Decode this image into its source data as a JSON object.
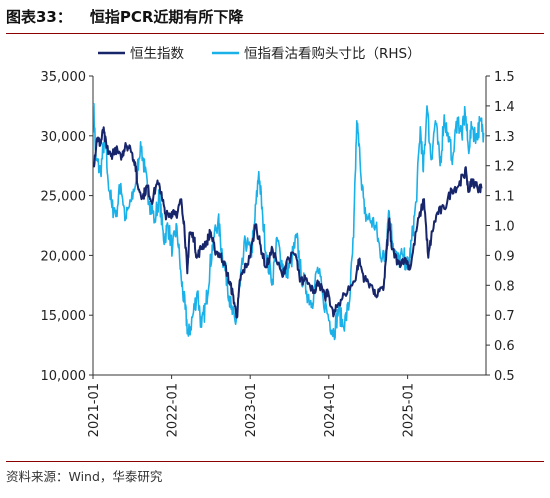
{
  "figure": {
    "label": "图表33：",
    "title": "恒指PCR近期有所下降",
    "source": "资料来源：Wind，华泰研究"
  },
  "colors": {
    "hsi": "#17256b",
    "pcr": "#1ab0e8",
    "rule": "#8b0000"
  },
  "chart_data": {
    "type": "line",
    "title": "",
    "xlabel": "",
    "ylabel": "",
    "y2label": "",
    "legend_position": "top",
    "grid": false,
    "x_range": [
      "2021-01-01",
      "2025-12-31"
    ],
    "x_tick_labels": [
      "2021-01",
      "2022-01",
      "2023-01",
      "2024-01",
      "2025-01"
    ],
    "ylim": [
      10000,
      35000
    ],
    "y_ticks": [
      10000,
      15000,
      20000,
      25000,
      30000,
      35000
    ],
    "y_tick_labels": [
      "10,000",
      "15,000",
      "20,000",
      "25,000",
      "30,000",
      "35,000"
    ],
    "y2lim": [
      0.5,
      1.5
    ],
    "y2_ticks": [
      0.5,
      0.6,
      0.7,
      0.8,
      0.9,
      1.0,
      1.1,
      1.2,
      1.3,
      1.4,
      1.5
    ],
    "y2_tick_labels": [
      "0.5",
      "0.6",
      "0.7",
      "0.8",
      "0.9",
      "1.0",
      "1.1",
      "1.2",
      "1.3",
      "1.4",
      "1.5"
    ],
    "series": [
      {
        "name": "恒生指数",
        "axis": "left",
        "points": [
          [
            "2021-01-04",
            27500
          ],
          [
            "2021-01-20",
            29800
          ],
          [
            "2021-02-05",
            29300
          ],
          [
            "2021-02-18",
            30500
          ],
          [
            "2021-03-05",
            29000
          ],
          [
            "2021-03-25",
            28300
          ],
          [
            "2021-04-15",
            29000
          ],
          [
            "2021-05-12",
            28000
          ],
          [
            "2021-06-01",
            29400
          ],
          [
            "2021-06-25",
            28800
          ],
          [
            "2021-07-15",
            27800
          ],
          [
            "2021-07-28",
            25800
          ],
          [
            "2021-08-20",
            24900
          ],
          [
            "2021-09-10",
            25800
          ],
          [
            "2021-09-30",
            24500
          ],
          [
            "2021-10-25",
            26000
          ],
          [
            "2021-11-15",
            25300
          ],
          [
            "2021-12-01",
            23500
          ],
          [
            "2021-12-20",
            23200
          ],
          [
            "2022-01-10",
            23800
          ],
          [
            "2022-01-28",
            23500
          ],
          [
            "2022-02-15",
            24700
          ],
          [
            "2022-03-01",
            22500
          ],
          [
            "2022-03-15",
            18500
          ],
          [
            "2022-03-25",
            21900
          ],
          [
            "2022-04-15",
            21500
          ],
          [
            "2022-04-28",
            19800
          ],
          [
            "2022-05-20",
            20700
          ],
          [
            "2022-06-15",
            21200
          ],
          [
            "2022-06-30",
            22000
          ],
          [
            "2022-07-20",
            20500
          ],
          [
            "2022-08-15",
            20000
          ],
          [
            "2022-09-01",
            19500
          ],
          [
            "2022-09-26",
            17800
          ],
          [
            "2022-10-12",
            16800
          ],
          [
            "2022-10-31",
            14800
          ],
          [
            "2022-11-15",
            18000
          ],
          [
            "2022-12-01",
            18700
          ],
          [
            "2022-12-30",
            19800
          ],
          [
            "2023-01-27",
            22600
          ],
          [
            "2023-02-15",
            21000
          ],
          [
            "2023-03-15",
            19000
          ],
          [
            "2023-04-15",
            20500
          ],
          [
            "2023-05-31",
            18200
          ],
          [
            "2023-06-20",
            19600
          ],
          [
            "2023-07-31",
            20100
          ],
          [
            "2023-08-20",
            17800
          ],
          [
            "2023-09-15",
            18000
          ],
          [
            "2023-10-25",
            17100
          ],
          [
            "2023-11-15",
            17800
          ],
          [
            "2023-12-15",
            16400
          ],
          [
            "2023-12-29",
            17000
          ],
          [
            "2024-01-22",
            14900
          ],
          [
            "2024-02-15",
            16000
          ],
          [
            "2024-03-15",
            16800
          ],
          [
            "2024-04-30",
            17800
          ],
          [
            "2024-05-20",
            19600
          ],
          [
            "2024-06-15",
            18000
          ],
          [
            "2024-07-20",
            17500
          ],
          [
            "2024-08-05",
            16700
          ],
          [
            "2024-09-10",
            17100
          ],
          [
            "2024-09-27",
            20600
          ],
          [
            "2024-10-07",
            23000
          ],
          [
            "2024-10-20",
            20500
          ],
          [
            "2024-11-20",
            19300
          ],
          [
            "2024-12-20",
            19800
          ],
          [
            "2025-01-13",
            18900
          ],
          [
            "2025-02-15",
            22500
          ],
          [
            "2025-03-18",
            24700
          ],
          [
            "2025-04-07",
            19800
          ],
          [
            "2025-04-25",
            22000
          ],
          [
            "2025-05-20",
            23600
          ],
          [
            "2025-06-20",
            23900
          ],
          [
            "2025-07-25",
            25500
          ],
          [
            "2025-08-25",
            25800
          ],
          [
            "2025-09-15",
            26700
          ],
          [
            "2025-09-30",
            27000
          ],
          [
            "2025-10-10",
            25300
          ],
          [
            "2025-10-28",
            26300
          ],
          [
            "2025-11-20",
            25700
          ],
          [
            "2025-12-10",
            25600
          ]
        ]
      },
      {
        "name": "恒指看沽看购头寸比（RHS）",
        "axis": "right",
        "points": [
          [
            "2021-01-04",
            1.4
          ],
          [
            "2021-01-15",
            1.22
          ],
          [
            "2021-02-05",
            1.18
          ],
          [
            "2021-02-25",
            1.3
          ],
          [
            "2021-03-10",
            1.17
          ],
          [
            "2021-03-30",
            1.06
          ],
          [
            "2021-04-20",
            1.05
          ],
          [
            "2021-05-10",
            1.14
          ],
          [
            "2021-06-01",
            1.02
          ],
          [
            "2021-06-25",
            1.08
          ],
          [
            "2021-07-20",
            1.15
          ],
          [
            "2021-08-10",
            1.28
          ],
          [
            "2021-08-30",
            1.18
          ],
          [
            "2021-09-20",
            1.08
          ],
          [
            "2021-10-15",
            1.02
          ],
          [
            "2021-11-05",
            1.1
          ],
          [
            "2021-11-25",
            0.95
          ],
          [
            "2021-12-15",
            1.0
          ],
          [
            "2022-01-05",
            0.92
          ],
          [
            "2022-01-25",
            1.0
          ],
          [
            "2022-02-15",
            0.82
          ],
          [
            "2022-03-05",
            0.72
          ],
          [
            "2022-03-20",
            0.63
          ],
          [
            "2022-04-10",
            0.7
          ],
          [
            "2022-05-01",
            0.78
          ],
          [
            "2022-05-20",
            0.66
          ],
          [
            "2022-06-10",
            0.74
          ],
          [
            "2022-06-28",
            0.86
          ],
          [
            "2022-07-15",
            0.96
          ],
          [
            "2022-08-05",
            1.02
          ],
          [
            "2022-08-25",
            0.9
          ],
          [
            "2022-09-15",
            0.82
          ],
          [
            "2022-10-05",
            0.72
          ],
          [
            "2022-10-25",
            0.67
          ],
          [
            "2022-11-15",
            0.8
          ],
          [
            "2022-12-10",
            0.95
          ],
          [
            "2023-01-05",
            0.9
          ],
          [
            "2023-01-20",
            1.0
          ],
          [
            "2023-02-10",
            1.18
          ],
          [
            "2023-02-28",
            1.03
          ],
          [
            "2023-03-20",
            0.88
          ],
          [
            "2023-04-15",
            0.82
          ],
          [
            "2023-05-05",
            0.96
          ],
          [
            "2023-05-25",
            0.88
          ],
          [
            "2023-06-15",
            0.84
          ],
          [
            "2023-07-10",
            0.88
          ],
          [
            "2023-08-05",
            0.96
          ],
          [
            "2023-08-25",
            0.84
          ],
          [
            "2023-09-20",
            0.78
          ],
          [
            "2023-10-15",
            0.74
          ],
          [
            "2023-11-10",
            0.86
          ],
          [
            "2023-12-05",
            0.76
          ],
          [
            "2024-01-05",
            0.68
          ],
          [
            "2024-01-25",
            0.64
          ],
          [
            "2024-02-15",
            0.72
          ],
          [
            "2024-03-10",
            0.66
          ],
          [
            "2024-04-05",
            0.74
          ],
          [
            "2024-04-25",
            0.96
          ],
          [
            "2024-05-10",
            1.35
          ],
          [
            "2024-05-25",
            1.22
          ],
          [
            "2024-06-15",
            1.04
          ],
          [
            "2024-07-10",
            1.02
          ],
          [
            "2024-08-05",
            1.0
          ],
          [
            "2024-08-25",
            0.92
          ],
          [
            "2024-09-15",
            0.88
          ],
          [
            "2024-10-05",
            1.05
          ],
          [
            "2024-10-25",
            0.94
          ],
          [
            "2024-11-15",
            0.88
          ],
          [
            "2024-12-10",
            0.9
          ],
          [
            "2025-01-05",
            0.86
          ],
          [
            "2025-01-20",
            0.95
          ],
          [
            "2025-02-10",
            1.08
          ],
          [
            "2025-03-01",
            1.33
          ],
          [
            "2025-03-15",
            1.18
          ],
          [
            "2025-04-01",
            1.4
          ],
          [
            "2025-04-20",
            1.22
          ],
          [
            "2025-05-10",
            1.35
          ],
          [
            "2025-06-01",
            1.2
          ],
          [
            "2025-06-20",
            1.37
          ],
          [
            "2025-07-10",
            1.28
          ],
          [
            "2025-07-30",
            1.23
          ],
          [
            "2025-08-20",
            1.36
          ],
          [
            "2025-09-10",
            1.3
          ],
          [
            "2025-09-25",
            1.38
          ],
          [
            "2025-10-10",
            1.26
          ],
          [
            "2025-10-28",
            1.33
          ],
          [
            "2025-11-15",
            1.29
          ],
          [
            "2025-12-05",
            1.35
          ],
          [
            "2025-12-20",
            1.31
          ]
        ]
      }
    ]
  }
}
